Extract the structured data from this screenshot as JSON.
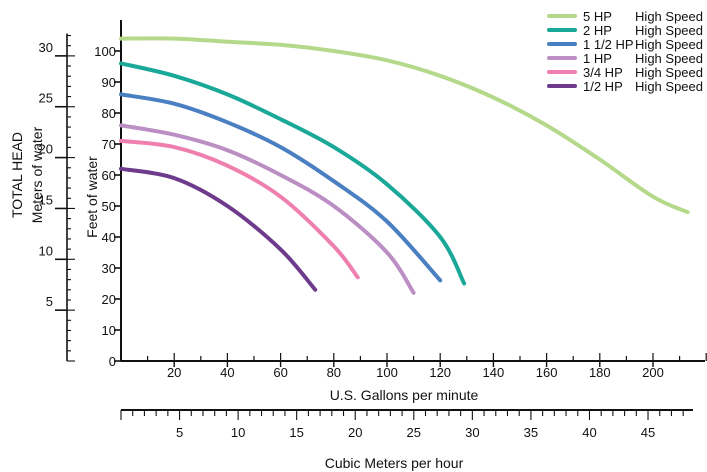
{
  "chart_data": {
    "type": "line",
    "y_left_title": "TOTAL HEAD",
    "y_left_subtitle": "Meters of water",
    "y_feet_label": "Feet of water",
    "x_top_label": "U.S. Gallons per minute",
    "x_bottom_label": "Cubic Meters per hour",
    "meters_ticks": [
      "5",
      "10",
      "15",
      "20",
      "25",
      "30"
    ],
    "meters_values": [
      5,
      10,
      15,
      20,
      25,
      30
    ],
    "feet_ticks": [
      "0",
      "10",
      "20",
      "30",
      "40",
      "50",
      "60",
      "70",
      "80",
      "90",
      "100"
    ],
    "feet_values": [
      0,
      10,
      20,
      30,
      40,
      50,
      60,
      70,
      80,
      90,
      100
    ],
    "gpm_ticks": [
      "20",
      "40",
      "60",
      "80",
      "100",
      "120",
      "140",
      "160",
      "180",
      "200"
    ],
    "gpm_values": [
      20,
      40,
      60,
      80,
      100,
      120,
      140,
      160,
      180,
      200
    ],
    "m3h_ticks": [
      "5",
      "10",
      "15",
      "20",
      "25",
      "30",
      "35",
      "40",
      "45"
    ],
    "m3h_values": [
      5,
      10,
      15,
      20,
      25,
      30,
      35,
      40,
      45
    ],
    "xlim_gpm": [
      0,
      220
    ],
    "ylim_feet": [
      0,
      105
    ],
    "grid": false,
    "legend_position": "top-right",
    "series": [
      {
        "name": "5 HP",
        "speed": "High Speed",
        "color": "#b5d98a",
        "x": [
          0,
          20,
          40,
          60,
          80,
          100,
          120,
          140,
          160,
          180,
          200,
          213
        ],
        "y": [
          104,
          104,
          103,
          102,
          100,
          97,
          92,
          85,
          76,
          65,
          53,
          48
        ]
      },
      {
        "name": "2 HP",
        "speed": "High Speed",
        "color": "#1aa899",
        "x": [
          0,
          20,
          40,
          60,
          80,
          100,
          120,
          129
        ],
        "y": [
          96,
          92,
          86,
          78,
          69,
          57,
          40,
          25
        ]
      },
      {
        "name": "1 1/2 HP",
        "speed": "High Speed",
        "color": "#4a7fc1",
        "x": [
          0,
          20,
          40,
          60,
          80,
          100,
          120
        ],
        "y": [
          86,
          83,
          77,
          69,
          58,
          45,
          26
        ]
      },
      {
        "name": "1 HP",
        "speed": "High Speed",
        "color": "#bb8ec4",
        "x": [
          0,
          20,
          40,
          60,
          80,
          100,
          110
        ],
        "y": [
          76,
          73,
          68,
          60,
          50,
          35,
          22
        ]
      },
      {
        "name": "3/4 HP",
        "speed": "High Speed",
        "color": "#ee7fae",
        "x": [
          0,
          20,
          40,
          60,
          80,
          89
        ],
        "y": [
          71,
          69,
          63,
          53,
          37,
          27
        ]
      },
      {
        "name": "1/2 HP",
        "speed": "High Speed",
        "color": "#6e3a8c",
        "x": [
          0,
          20,
          40,
          60,
          73
        ],
        "y": [
          62,
          59,
          50,
          36,
          23
        ]
      }
    ]
  }
}
